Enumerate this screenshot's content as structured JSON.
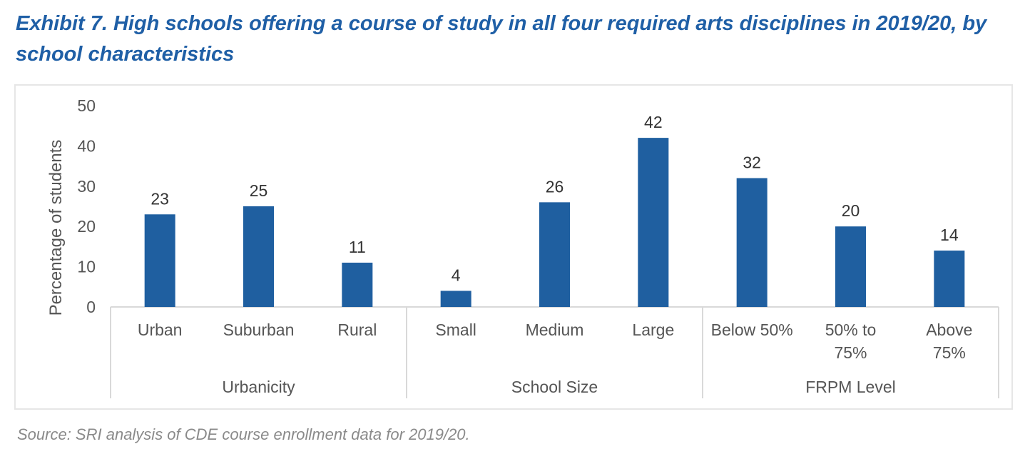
{
  "title": "Exhibit 7. High schools offering a course of study in all four required arts disciplines in 2019/20, by school characteristics",
  "source": "Source: SRI analysis of CDE course enrollment data for 2019/20.",
  "chart_data": {
    "type": "bar",
    "title": "Exhibit 7. High schools offering a course of study in all four required arts disciplines in 2019/20, by school characteristics",
    "ylabel": "Percentage of students",
    "xlabel": "",
    "ylim": [
      0,
      50
    ],
    "yticks": [
      0,
      10,
      20,
      30,
      40,
      50
    ],
    "grid": false,
    "bar_color": "#1f5fa0",
    "categories": [
      [
        "Urban"
      ],
      [
        "Suburban"
      ],
      [
        "Rural"
      ],
      [
        "Small"
      ],
      [
        "Medium"
      ],
      [
        "Large"
      ],
      [
        "Below 50%"
      ],
      [
        "50% to",
        "75%"
      ],
      [
        "Above",
        "75%"
      ]
    ],
    "values": [
      23,
      25,
      11,
      4,
      26,
      42,
      32,
      20,
      14
    ],
    "groups": [
      {
        "label": "Urbanicity",
        "count": 3
      },
      {
        "label": "School Size",
        "count": 3
      },
      {
        "label": "FRPM Level",
        "count": 3
      }
    ]
  }
}
